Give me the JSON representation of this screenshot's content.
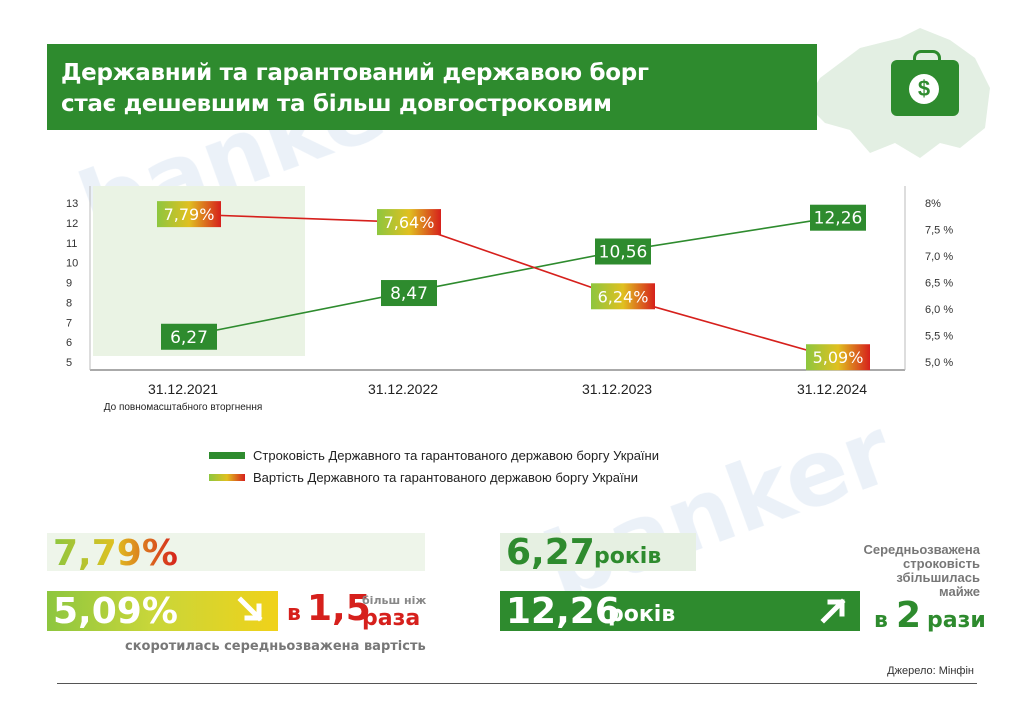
{
  "title": {
    "line1": "Державний та гарантований державою борг",
    "line2": "стає дешевшим та більш довгостроковим"
  },
  "watermark": "banker",
  "colors": {
    "brand_green": "#2e8b2e",
    "map_green": "#e3efe3",
    "cost_red": "#d6201c",
    "cost_gradient": [
      "#8dc63f",
      "#e0c020",
      "#d6201c"
    ],
    "highlight": "#eaf3e4"
  },
  "icons": [
    "map-ukraine-icon",
    "money-bag-icon",
    "arrow-down-right-icon",
    "arrow-up-right-icon"
  ],
  "chart_data": {
    "type": "line",
    "categories": [
      "31.12.2021",
      "31.12.2022",
      "31.12.2023",
      "31.12.2024"
    ],
    "category_note": "До повномасштабного вторгнення",
    "highlighted_category": "31.12.2021",
    "series": [
      {
        "name": "Строковість Державного та гарантованого державою боргу України",
        "axis": "left",
        "color": "#2e8b2e",
        "values": [
          6.27,
          8.47,
          10.56,
          12.26
        ],
        "labels": [
          "6,27",
          "8,47",
          "10,56",
          "12,26"
        ]
      },
      {
        "name": "Вартість Державного та гарантованого державою боргу України",
        "axis": "right",
        "color": "#d6201c",
        "values": [
          7.79,
          7.64,
          6.24,
          5.09
        ],
        "labels": [
          "7,79%",
          "7,64%",
          "6,24%",
          "5,09%"
        ]
      }
    ],
    "y_left": {
      "ticks": [
        "5",
        "6",
        "7",
        "8",
        "9",
        "10",
        "11",
        "12",
        "13"
      ],
      "range": [
        5,
        13
      ]
    },
    "y_right": {
      "ticks": [
        "5,0 %",
        "5,5 %",
        "6,0 %",
        "6,5 %",
        "7,0 %",
        "7,5 %",
        "8%"
      ],
      "range": [
        5.0,
        8.0
      ]
    },
    "grid": false,
    "legend_position": "bottom"
  },
  "stats": {
    "cost": {
      "before": "7,79%",
      "after": "5,09%",
      "factor_prefix": "в",
      "factor": "1,5",
      "factor_word": "раза",
      "factor_note_top": "більш ніж",
      "caption": "скоротилась середньозважена вартість"
    },
    "term": {
      "before_value": "6,27",
      "before_unit": "років",
      "after_value": "12,26",
      "after_unit": "років",
      "note_line1": "Середньозважена",
      "note_line2": "строковість",
      "note_line3": "збільшилась",
      "note_line4": "майже",
      "factor_prefix": "в",
      "factor": "2",
      "factor_word": "рази"
    }
  },
  "source": "Джерело: Мінфін"
}
